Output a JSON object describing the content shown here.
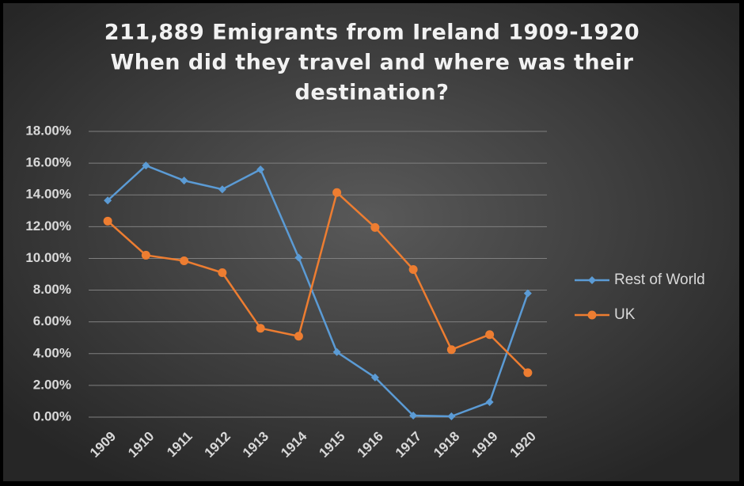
{
  "chart_data": {
    "type": "line",
    "title": [
      "211,889 Emigrants from Ireland 1909-1920",
      "When did they travel and where was their",
      "destination?"
    ],
    "categories": [
      "1909",
      "1910",
      "1911",
      "1912",
      "1913",
      "1914",
      "1915",
      "1916",
      "1917",
      "1918",
      "1919",
      "1920"
    ],
    "series": [
      {
        "name": "Rest of World",
        "color": "#5b9bd5",
        "marker": "diamond",
        "values": [
          13.65,
          15.85,
          14.9,
          14.35,
          15.6,
          10.05,
          4.1,
          2.5,
          0.1,
          0.05,
          0.95,
          7.8
        ]
      },
      {
        "name": "UK",
        "color": "#ed7d31",
        "marker": "circle",
        "values": [
          12.35,
          10.2,
          9.85,
          9.1,
          5.6,
          5.1,
          14.15,
          11.95,
          9.3,
          4.25,
          5.2,
          2.8
        ]
      }
    ],
    "ylim": [
      0,
      18
    ],
    "yticks": [
      {
        "value": 0,
        "label": "0.00%"
      },
      {
        "value": 2,
        "label": "2.00%"
      },
      {
        "value": 4,
        "label": "4.00%"
      },
      {
        "value": 6,
        "label": "6.00%"
      },
      {
        "value": 8,
        "label": "8.00%"
      },
      {
        "value": 10,
        "label": "10.00%"
      },
      {
        "value": 12,
        "label": "12.00%"
      },
      {
        "value": 14,
        "label": "14.00%"
      },
      {
        "value": 16,
        "label": "16.00%"
      },
      {
        "value": 18,
        "label": "18.00%"
      }
    ],
    "grid": true,
    "legend": "right"
  }
}
